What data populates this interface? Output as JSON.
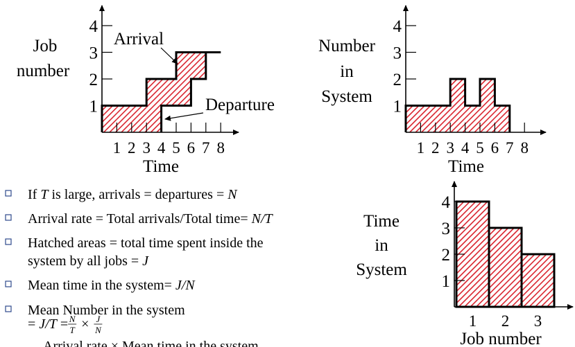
{
  "chart_data": [
    {
      "type": "step",
      "ylabel": [
        "Job",
        "number"
      ],
      "xlabel": "Time",
      "xticks": [
        1,
        2,
        3,
        4,
        5,
        6,
        7,
        8
      ],
      "yticks": [
        1,
        2,
        3,
        4
      ],
      "xlim": [
        0,
        9
      ],
      "ylim": [
        0,
        4.6
      ],
      "hatch_color": "#d9232d",
      "series": [
        {
          "name": "Arrival",
          "color": "#000000",
          "values": [
            1,
            1,
            1,
            2,
            2,
            3,
            3,
            3
          ]
        },
        {
          "name": "Departure",
          "color": "#000000",
          "values": [
            0,
            0,
            0,
            0,
            1,
            1,
            2,
            3
          ]
        }
      ]
    },
    {
      "type": "step",
      "ylabel": [
        "Number",
        "in",
        "System"
      ],
      "xlabel": "Time",
      "xticks": [
        1,
        2,
        3,
        4,
        5,
        6,
        7,
        8
      ],
      "yticks": [
        1,
        2,
        3,
        4
      ],
      "xlim": [
        0,
        9
      ],
      "ylim": [
        0,
        4.6
      ],
      "hatch_color": "#d9232d",
      "series": [
        {
          "color": "#000000",
          "values": [
            1,
            1,
            1,
            2,
            1,
            2,
            1,
            0
          ]
        }
      ]
    },
    {
      "type": "bar",
      "ylabel": [
        "Time",
        "in",
        "System"
      ],
      "xlabel": "Job number",
      "categories": [
        "1",
        "2",
        "3"
      ],
      "values": [
        4,
        3,
        2
      ],
      "yticks": [
        1,
        2,
        3,
        4
      ],
      "ylim": [
        0,
        4.8
      ],
      "hatch_color": "#d9232d",
      "color": "#000000"
    }
  ],
  "bullets": [
    {
      "lines": [
        [
          "If ",
          {
            "text": "T",
            "italic": true
          },
          " is large, arrivals = departures = ",
          {
            "text": "N",
            "italic": true
          }
        ]
      ]
    },
    {
      "lines": [
        [
          "Arrival rate = Total arrivals/Total time= ",
          {
            "text": "N/T",
            "italic": true
          }
        ]
      ]
    },
    {
      "lines": [
        [
          "Hatched areas = total time spent inside the"
        ],
        [
          "system by all jobs = ",
          {
            "text": "J",
            "italic": true
          }
        ]
      ]
    },
    {
      "lines": [
        [
          "Mean time in the system= ",
          {
            "text": "J/N",
            "italic": true
          }
        ]
      ]
    },
    {
      "lines": [
        [
          "Mean Number in the system"
        ]
      ]
    }
  ],
  "formula": {
    "lead": [
      "= ",
      {
        "text": "J/T",
        "italic": true
      },
      " = "
    ],
    "fractions": [
      [
        "N",
        "T"
      ],
      [
        "J",
        "N"
      ]
    ],
    "op": " × "
  },
  "sub_bullet": "Arrival rate × Mean time in the system"
}
